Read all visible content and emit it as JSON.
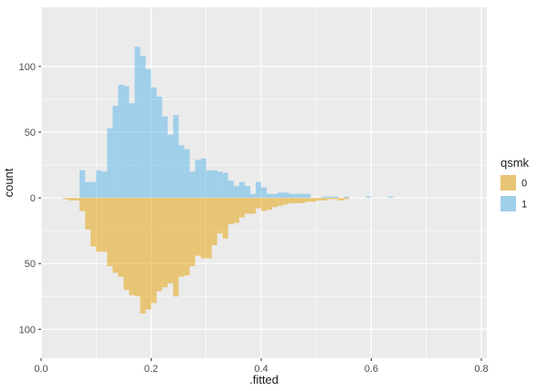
{
  "chart_data": {
    "type": "mirrored-histogram",
    "xlabel": ".fitted",
    "ylabel": "count",
    "xlim": [
      0.0,
      0.81
    ],
    "ylim": [
      -122,
      145
    ],
    "x_ticks": [
      0.0,
      0.2,
      0.4,
      0.6,
      0.8
    ],
    "x_tick_labels": [
      "0.0",
      "0.2",
      "0.4",
      "0.6",
      "0.8"
    ],
    "y_ticks": [
      100,
      50,
      0,
      -50,
      -100
    ],
    "y_tick_labels": [
      "100",
      "50",
      "0",
      "50",
      "100"
    ],
    "grid": true,
    "legend": {
      "title": "qsmk",
      "position": "right",
      "entries": [
        {
          "label": "0",
          "color": "#E69F00"
        },
        {
          "label": "1",
          "color": "#56B4E9"
        }
      ]
    },
    "bin_start": 0.04,
    "bin_width": 0.01,
    "series": [
      {
        "name": "1",
        "color": "#56B4E9",
        "alpha": 0.5,
        "values": [
          0,
          0,
          0,
          21,
          12,
          12,
          21,
          20,
          53,
          70,
          86,
          85,
          72,
          115,
          108,
          98,
          84,
          77,
          62,
          48,
          63,
          40,
          37,
          20,
          29,
          30,
          21,
          21,
          20,
          19,
          13,
          9,
          12,
          9,
          3,
          12,
          8,
          3,
          3,
          4,
          4,
          3,
          3,
          3,
          3,
          0,
          0,
          1,
          1,
          1,
          0,
          1,
          0,
          0,
          0,
          1,
          0,
          0,
          0,
          1
        ]
      },
      {
        "name": "0",
        "color": "#E69F00",
        "alpha": 0.5,
        "values": [
          1,
          2,
          2,
          10,
          24,
          37,
          41,
          41,
          52,
          57,
          60,
          70,
          74,
          75,
          88,
          85,
          80,
          71,
          68,
          65,
          75,
          60,
          59,
          52,
          44,
          46,
          46,
          36,
          27,
          31,
          20,
          19,
          15,
          12,
          12,
          8,
          10,
          9,
          7,
          6,
          5,
          4,
          4,
          4,
          3,
          3,
          2,
          2,
          1,
          1,
          2,
          1,
          0,
          0,
          0,
          0,
          0,
          0,
          0,
          0
        ]
      }
    ]
  }
}
